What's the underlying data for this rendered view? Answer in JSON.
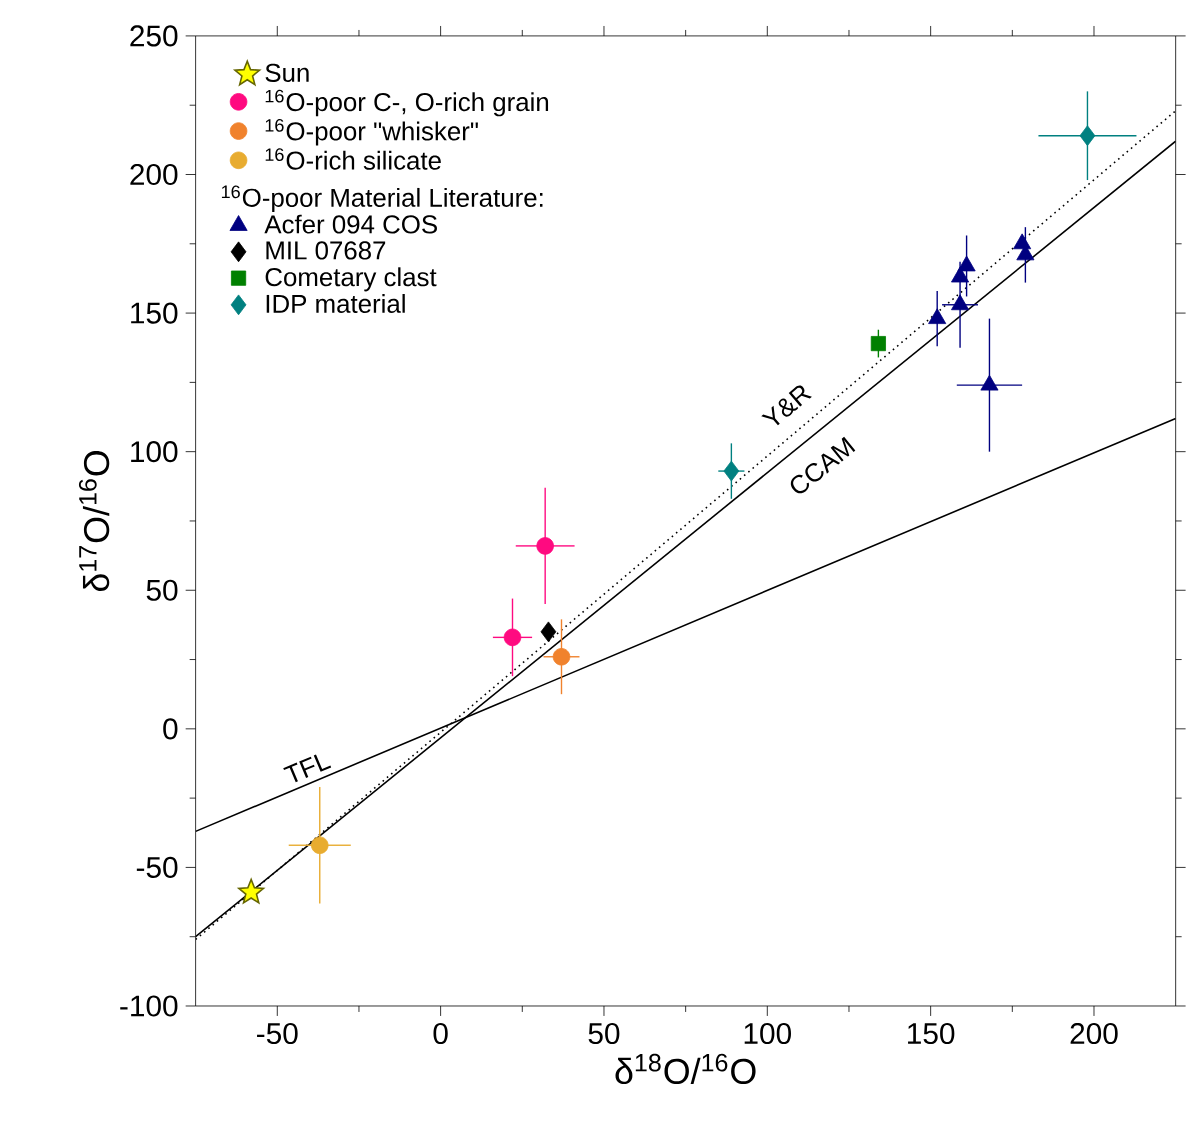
{
  "chart_data": {
    "type": "scatter",
    "xlabel": "δ$^{18}$O/$^{16}$O",
    "ylabel": "δ$^{17}$O/$^{16}$O",
    "xlim": [
      -75,
      225
    ],
    "ylim": [
      -100,
      250
    ],
    "xticks": [
      -50,
      0,
      50,
      100,
      150,
      200
    ],
    "yticks": [
      -100,
      -50,
      0,
      50,
      100,
      150,
      200,
      250
    ],
    "legend": "top left",
    "legend_title": "$^{16}$O-poor Material Literature:",
    "series": [
      {
        "type": "line",
        "line_style": "solid",
        "color": "#000000",
        "x": [
          -75,
          225
        ],
        "values": [
          -37,
          112
        ]
      },
      {
        "type": "line",
        "line_style": "dotted",
        "color": "#000000",
        "x": [
          -75,
          225
        ],
        "values": [
          -76,
          223
        ]
      },
      {
        "type": "line",
        "line_style": "solid",
        "color": "#000000",
        "x": [
          -75,
          225
        ],
        "values": [
          -75,
          212
        ]
      },
      {
        "name": "Sun",
        "marker": "star",
        "color": "#ffff00",
        "x": [
          -58
        ],
        "values": [
          -59
        ]
      },
      {
        "name": "$^{16}$O-poor C-, O-rich grain",
        "marker": "circle",
        "color": "#ff0a80",
        "x": [
          22,
          32
        ],
        "values": [
          33,
          66
        ],
        "errors": [
          14,
          21
        ],
        "xerrors": [
          6,
          9
        ]
      },
      {
        "name": "$^{16}$O-poor \"whisker\"",
        "marker": "circle",
        "color": "#f0822d",
        "x": [
          37
        ],
        "values": [
          26
        ],
        "errors": [
          13.5
        ],
        "xerrors": [
          5.5
        ]
      },
      {
        "name": "$^{16}$O-rich silicate",
        "marker": "circle",
        "color": "#e8ac30",
        "x": [
          -37
        ],
        "values": [
          -42
        ],
        "errors": [
          21
        ],
        "xerrors": [
          9.5
        ]
      },
      {
        "name": "Acfer 094 COS",
        "marker": "triangle",
        "color": "#000080",
        "x": [
          152,
          159,
          159,
          161,
          168,
          178,
          179
        ],
        "values": [
          148,
          153,
          163,
          167,
          124,
          175,
          171
        ],
        "errors": [
          10,
          15.5,
          null,
          11,
          24,
          null,
          10
        ],
        "xerrors": [
          null,
          5.5,
          null,
          null,
          10,
          null,
          null
        ]
      },
      {
        "name": "MIL 07687",
        "marker": "diamond",
        "color": "#000000",
        "x": [
          33
        ],
        "values": [
          35
        ]
      },
      {
        "name": "Cometary clast",
        "marker": "square",
        "color": "#008000",
        "x": [
          134
        ],
        "values": [
          139
        ],
        "errors": [
          5
        ]
      },
      {
        "name": "IDP material",
        "marker": "diamond",
        "color": "#008080",
        "x": [
          89,
          198
        ],
        "values": [
          93,
          214
        ],
        "errors": [
          10,
          16
        ],
        "xerrors": [
          4,
          15
        ]
      }
    ],
    "annotations": [
      "TFL",
      "Y&R",
      "CCAM"
    ]
  }
}
